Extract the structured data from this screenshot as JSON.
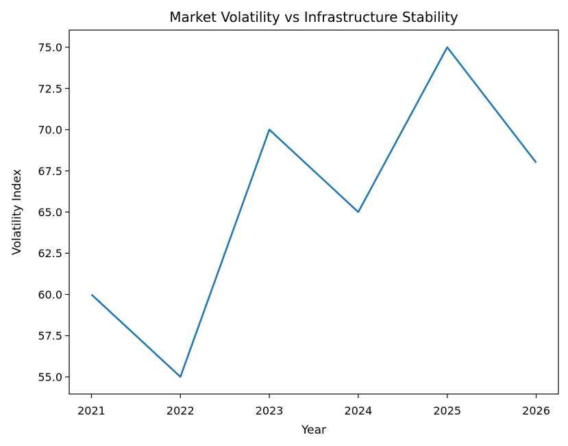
{
  "chart_data": {
    "type": "line",
    "title": "Market Volatility vs Infrastructure Stability",
    "xlabel": "Year",
    "ylabel": "Volatility Index",
    "x": [
      2021,
      2022,
      2023,
      2024,
      2025,
      2026
    ],
    "series": [
      {
        "name": "Volatility Index",
        "values": [
          60,
          55,
          70,
          65,
          75,
          68
        ],
        "color": "#1f77b4"
      }
    ],
    "xlim": [
      2020.75,
      2026.25
    ],
    "ylim": [
      53.96,
      76.04
    ],
    "xticks": [
      "2021",
      "2022",
      "2023",
      "2024",
      "2025",
      "2026"
    ],
    "yticks": [
      "55.0",
      "57.5",
      "60.0",
      "62.5",
      "65.0",
      "67.5",
      "70.0",
      "72.5",
      "75.0"
    ],
    "grid": false,
    "legend": "none"
  }
}
